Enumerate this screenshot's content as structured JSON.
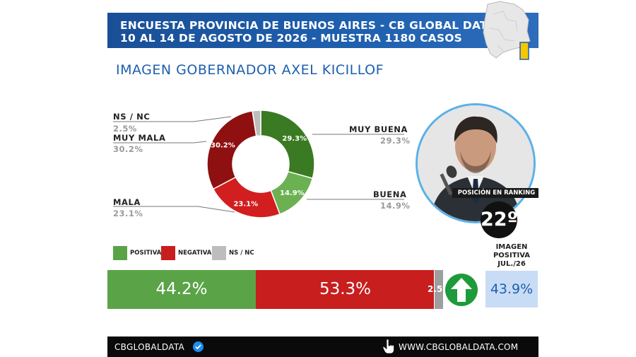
{
  "header": {
    "line1": "ENCUESTA PROVINCIA DE BUENOS AIRES - CB GLOBAL DATA",
    "line2": "10 AL 14 DE AGOSTO DE 2026 - MUESTRA 1180 CASOS"
  },
  "subtitle": "IMAGEN GOBERNADOR  AXEL KICILLOF",
  "colors": {
    "header_blue": "#1e5fae",
    "positive": "#5aa447",
    "muy_buena": "#3a7a22",
    "negative": "#c81e1e",
    "muy_mala": "#8e1010",
    "ns": "#bdbdbd"
  },
  "chart_data": [
    {
      "type": "pie",
      "donut": true,
      "labels": [
        "MUY BUENA",
        "BUENA",
        "MALA",
        "MUY MALA",
        "NS / NC"
      ],
      "values": [
        29.3,
        14.9,
        23.1,
        30.2,
        2.5
      ],
      "value_labels": [
        "29.3%",
        "14.9%",
        "23.1%",
        "30.2%",
        "2.5%"
      ],
      "colors": [
        "#3a7a22",
        "#6bb152",
        "#d21e1e",
        "#8e1010",
        "#bdbdbd"
      ]
    },
    {
      "type": "bar",
      "stacked": true,
      "orientation": "horizontal",
      "categories": [
        "POSITIVA",
        "NEGATIVA",
        "NS / NC"
      ],
      "values": [
        44.2,
        53.3,
        2.5
      ],
      "value_labels": [
        "44.2%",
        "53.3%",
        "2.5%"
      ],
      "colors": [
        "#5aa447",
        "#c81e1e",
        "#9e9e9e"
      ]
    }
  ],
  "ranking": {
    "label": "POSICIÓN EN RANKING",
    "value": "22º"
  },
  "previous": {
    "label": "IMAGEN POSITIVA JUL./26",
    "value": "43.9%",
    "trend": "up-arrow-icon"
  },
  "footer": {
    "brand": "CBGLOBALDATA",
    "url": "WWW.CBGLOBALDATA.COM"
  }
}
